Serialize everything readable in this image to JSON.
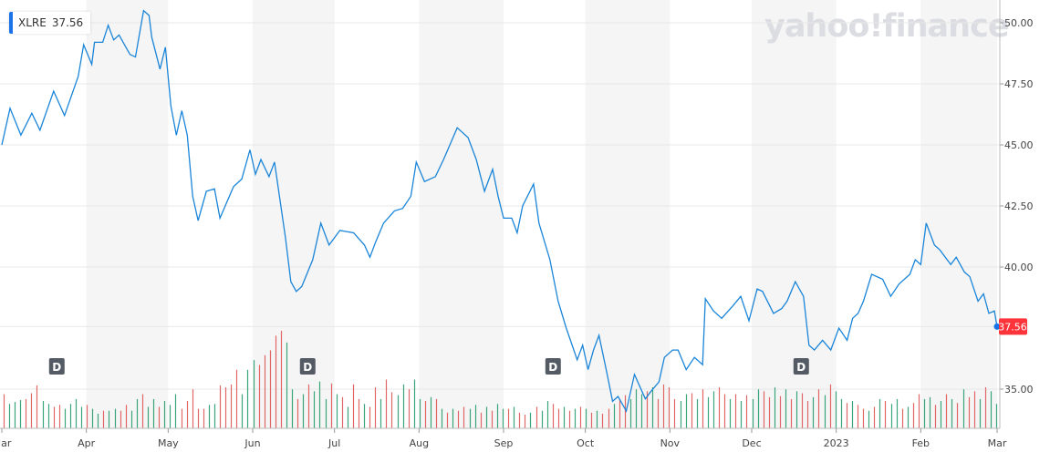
{
  "chart_data": {
    "type": "line",
    "symbol": "XLRE",
    "tooltip_value": "37.56",
    "last_price_label": "37.56",
    "watermark": "yahoo!finance",
    "ylim": [
      33.5,
      51
    ],
    "y_ticks": [
      "50.00",
      "47.50",
      "45.00",
      "42.50",
      "40.00",
      "35.00"
    ],
    "y_tick_values": [
      50,
      47.5,
      45,
      42.5,
      40,
      35
    ],
    "x_range": [
      "2022-03-01",
      "2023-03-01"
    ],
    "x_ticks": [
      {
        "label": "Mar",
        "date": "2022-03-01"
      },
      {
        "label": "Apr",
        "date": "2022-04-01"
      },
      {
        "label": "May",
        "date": "2022-05-01"
      },
      {
        "label": "Jun",
        "date": "2022-06-01"
      },
      {
        "label": "Jul",
        "date": "2022-07-01"
      },
      {
        "label": "Aug",
        "date": "2022-08-01"
      },
      {
        "label": "Sep",
        "date": "2022-09-01"
      },
      {
        "label": "Oct",
        "date": "2022-10-01"
      },
      {
        "label": "Nov",
        "date": "2022-11-01"
      },
      {
        "label": "Dec",
        "date": "2022-12-01"
      },
      {
        "label": "2023",
        "date": "2023-01-01"
      },
      {
        "label": "Feb",
        "date": "2023-02-01"
      },
      {
        "label": "Mar",
        "date": "2023-03-01"
      }
    ],
    "grid": true,
    "colors": {
      "line": "#1a85d8",
      "up": "#3aa57a",
      "down": "#e06666",
      "shade": "#f5f5f5",
      "price_label": "#ff333a",
      "marker": "#555b65"
    },
    "dividends": [
      {
        "label": "D",
        "date": "2022-03-21"
      },
      {
        "label": "D",
        "date": "2022-06-21"
      },
      {
        "label": "D",
        "date": "2022-09-19"
      },
      {
        "label": "D",
        "date": "2022-12-19"
      }
    ],
    "series": {
      "dates": [
        "2022-03-01",
        "2022-03-04",
        "2022-03-08",
        "2022-03-12",
        "2022-03-15",
        "2022-03-20",
        "2022-03-24",
        "2022-03-29",
        "2022-03-31",
        "2022-04-03",
        "2022-04-04",
        "2022-04-07",
        "2022-04-09",
        "2022-04-11",
        "2022-04-13",
        "2022-04-17",
        "2022-04-19",
        "2022-04-22",
        "2022-04-24",
        "2022-04-25",
        "2022-04-28",
        "2022-04-30",
        "2022-05-02",
        "2022-05-04",
        "2022-05-06",
        "2022-05-08",
        "2022-05-10",
        "2022-05-12",
        "2022-05-15",
        "2022-05-18",
        "2022-05-20",
        "2022-05-25",
        "2022-05-28",
        "2022-05-31",
        "2022-06-02",
        "2022-06-04",
        "2022-06-07",
        "2022-06-09",
        "2022-06-13",
        "2022-06-15",
        "2022-06-17",
        "2022-06-19",
        "2022-06-23",
        "2022-06-26",
        "2022-06-29",
        "2022-07-03",
        "2022-07-08",
        "2022-07-12",
        "2022-07-14",
        "2022-07-16",
        "2022-07-19",
        "2022-07-23",
        "2022-07-26",
        "2022-07-29",
        "2022-07-31",
        "2022-08-03",
        "2022-08-07",
        "2022-08-10",
        "2022-08-15",
        "2022-08-19",
        "2022-08-22",
        "2022-08-25",
        "2022-08-28",
        "2022-08-30",
        "2022-09-01",
        "2022-09-04",
        "2022-09-06",
        "2022-09-08",
        "2022-09-12",
        "2022-09-14",
        "2022-09-18",
        "2022-09-21",
        "2022-09-24",
        "2022-09-28",
        "2022-09-30",
        "2022-10-02",
        "2022-10-04",
        "2022-10-06",
        "2022-10-09",
        "2022-10-11",
        "2022-10-13",
        "2022-10-16",
        "2022-10-19",
        "2022-10-23",
        "2022-10-25",
        "2022-10-28",
        "2022-10-30",
        "2022-11-02",
        "2022-11-04",
        "2022-11-07",
        "2022-11-10",
        "2022-11-13",
        "2022-11-14",
        "2022-11-17",
        "2022-11-20",
        "2022-11-24",
        "2022-11-27",
        "2022-11-30",
        "2022-12-03",
        "2022-12-05",
        "2022-12-09",
        "2022-12-12",
        "2022-12-14",
        "2022-12-17",
        "2022-12-20",
        "2022-12-22",
        "2022-12-24",
        "2022-12-27",
        "2022-12-30",
        "2023-01-02",
        "2023-01-05",
        "2023-01-07",
        "2023-01-09",
        "2023-01-11",
        "2023-01-14",
        "2023-01-18",
        "2023-01-21",
        "2023-01-24",
        "2023-01-28",
        "2023-01-30",
        "2023-02-01",
        "2023-02-03",
        "2023-02-06",
        "2023-02-08",
        "2023-02-12",
        "2023-02-14",
        "2023-02-17",
        "2023-02-19",
        "2023-02-22",
        "2023-02-24",
        "2023-02-26",
        "2023-02-28",
        "2023-03-01"
      ],
      "values": [
        45.0,
        46.5,
        45.4,
        46.3,
        45.6,
        47.2,
        46.2,
        47.8,
        49.1,
        48.3,
        49.2,
        49.2,
        49.9,
        49.3,
        49.5,
        48.7,
        48.6,
        50.5,
        50.3,
        49.4,
        48.1,
        49.0,
        46.6,
        45.4,
        46.4,
        45.4,
        42.9,
        41.9,
        43.1,
        43.2,
        42.0,
        43.3,
        43.6,
        44.8,
        43.8,
        44.4,
        43.7,
        44.3,
        41.2,
        39.4,
        39.0,
        39.2,
        40.3,
        41.8,
        40.9,
        41.5,
        41.4,
        40.9,
        40.4,
        41.0,
        41.8,
        42.3,
        42.4,
        42.9,
        44.3,
        43.5,
        43.7,
        44.4,
        45.7,
        45.3,
        44.4,
        43.1,
        44.0,
        42.9,
        42.0,
        42.0,
        41.4,
        42.5,
        43.4,
        41.8,
        40.3,
        38.6,
        37.5,
        36.2,
        36.8,
        35.8,
        36.6,
        37.2,
        35.6,
        34.5,
        34.7,
        34.1,
        35.6,
        34.6,
        34.9,
        35.3,
        36.3,
        36.6,
        36.6,
        35.8,
        36.3,
        36.0,
        38.7,
        38.2,
        37.9,
        38.4,
        38.8,
        37.8,
        39.1,
        39.0,
        38.1,
        38.3,
        38.6,
        39.4,
        38.8,
        36.8,
        36.6,
        37.0,
        36.6,
        37.5,
        37.0,
        37.9,
        38.1,
        38.6,
        39.7,
        39.5,
        38.8,
        39.3,
        39.7,
        40.3,
        40.1,
        41.8,
        40.9,
        40.7,
        40.1,
        40.4,
        39.8,
        39.6,
        38.6,
        38.9,
        38.1,
        38.2,
        37.56
      ]
    },
    "volume": {
      "relative": [
        35,
        25,
        27,
        29,
        30,
        36,
        44,
        28,
        25,
        22,
        24,
        20,
        25,
        30,
        22,
        24,
        20,
        15,
        18,
        18,
        20,
        18,
        24,
        18,
        30,
        35,
        22,
        30,
        22,
        28,
        24,
        35,
        20,
        28,
        40,
        20,
        20,
        24,
        25,
        44,
        42,
        45,
        60,
        35,
        60,
        70,
        65,
        75,
        80,
        95,
        100,
        88,
        40,
        30,
        35,
        45,
        38,
        48,
        30,
        46,
        35,
        32,
        22,
        45,
        30,
        25,
        22,
        42,
        30,
        50,
        37,
        34,
        45,
        40,
        50,
        30,
        28,
        32,
        30,
        20,
        16,
        20,
        18,
        22,
        20,
        24,
        16,
        22,
        18,
        25,
        20,
        20,
        22,
        16,
        14,
        16,
        22,
        18,
        28,
        25,
        20,
        22,
        18,
        20,
        22,
        20,
        16,
        18,
        15,
        20,
        25,
        30,
        34,
        30,
        40,
        35,
        38,
        42,
        30,
        45,
        42,
        30,
        28,
        35,
        36,
        30,
        40,
        32,
        38,
        42,
        35,
        30,
        35,
        28,
        34,
        30,
        40,
        38,
        32,
        42,
        33,
        40,
        30,
        38,
        36,
        28,
        32,
        40,
        34,
        45,
        38,
        30,
        26,
        28,
        24,
        20,
        18,
        22,
        30,
        28,
        25,
        30,
        20,
        22,
        26,
        35,
        30,
        32,
        24,
        28,
        35,
        30,
        26,
        40,
        32,
        38,
        30,
        42,
        38,
        25
      ],
      "up": [
        0,
        1,
        1,
        1,
        0,
        0,
        0,
        1,
        1,
        0,
        0,
        1,
        1,
        1,
        1,
        0,
        1,
        1,
        0,
        1,
        1,
        0,
        0,
        1,
        1,
        0,
        1,
        1,
        0,
        1,
        1,
        1,
        0,
        0,
        0,
        0,
        0,
        1,
        1,
        0,
        0,
        0,
        0,
        1,
        1,
        1,
        0,
        0,
        0,
        0,
        0,
        1,
        1,
        0,
        1,
        0,
        1,
        1,
        1,
        0,
        1,
        0,
        1,
        0,
        0,
        1,
        0,
        0,
        1,
        0,
        0,
        1,
        1,
        0,
        1,
        1,
        0,
        1,
        0,
        1,
        0,
        1,
        0,
        0,
        1,
        1,
        0,
        1,
        0,
        1,
        1,
        0,
        1,
        0,
        0,
        1,
        0,
        1,
        1,
        0,
        0,
        1,
        0,
        1,
        0,
        1,
        0,
        1,
        0,
        0,
        1,
        0,
        0,
        1,
        1,
        1,
        0,
        1,
        0,
        0,
        0,
        0,
        1,
        1,
        0,
        1,
        0,
        1,
        1,
        0,
        0,
        1,
        0,
        1,
        0,
        1,
        1,
        0,
        0,
        1,
        0,
        1,
        0,
        1,
        0,
        0,
        1,
        0,
        1,
        0,
        1,
        1,
        0,
        1,
        0,
        0,
        1,
        0,
        1,
        0,
        1,
        1,
        0,
        1,
        0,
        0,
        1,
        1,
        0,
        1,
        0,
        1,
        0,
        1,
        0,
        0,
        1,
        0,
        1,
        1
      ]
    }
  }
}
